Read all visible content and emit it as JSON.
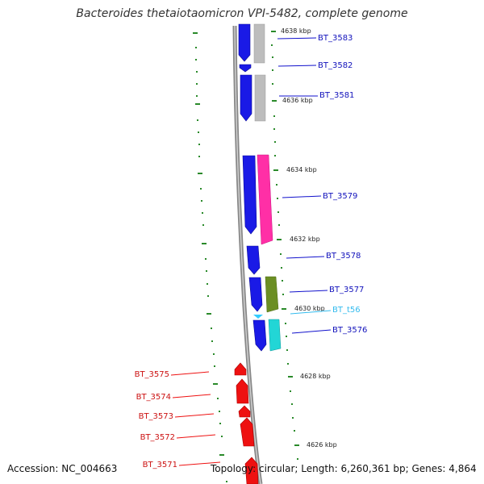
{
  "title": "Bacteroides thetaiotaomicron VPI-5482, complete genome",
  "footer": {
    "accession": "Accession: NC_004663",
    "info": "Topology: circular; Length: 6,260,361 bp; Genes: 4,864"
  },
  "colors": {
    "forward_gene": "#1010e0",
    "reverse_gene": "#ee1111",
    "trna": "#33ccff",
    "scale_tick": "#2a8a2a",
    "backbone": "#888888",
    "gene_grey": "#bfbfbf",
    "gene_pink": "#ff33aa",
    "gene_olive": "#6b8e23",
    "gene_cyan": "#20d0d0"
  },
  "scale_labels": [
    "4638 kbp",
    "4636 kbp",
    "4634 kbp",
    "4632 kbp",
    "4630 kbp",
    "4628 kbp",
    "4626 kbp"
  ],
  "gene_labels": {
    "right": [
      "BT_3583",
      "BT_3582",
      "BT_3581",
      "BT_3579",
      "BT_3578",
      "BT_3577",
      "BT_t56",
      "BT_3576"
    ],
    "left": [
      "BT_3575",
      "BT_3574",
      "BT_3573",
      "BT_3572",
      "BT_3571"
    ]
  }
}
